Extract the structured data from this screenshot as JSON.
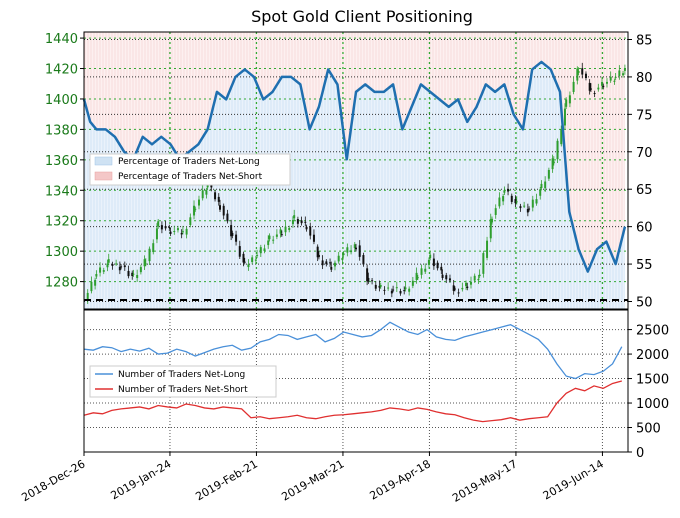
{
  "chart_data": [
    {
      "type": "line",
      "title": "Spot Gold Client Positioning",
      "x_ticks": [
        "2018-Dec-26",
        "2019-Jan-24",
        "2019-Feb-21",
        "2019-Mar-21",
        "2019-Apr-18",
        "2019-May-17",
        "2019-Jun-14"
      ],
      "y_left_ticks": [
        1280,
        1300,
        1320,
        1340,
        1360,
        1380,
        1400,
        1420,
        1440
      ],
      "y_left_range": [
        1262,
        1444
      ],
      "y_right_ticks": [
        50,
        55,
        60,
        65,
        70,
        75,
        80,
        85
      ],
      "y_right_range": [
        49,
        86
      ],
      "legend_position": "upper-left",
      "series": [
        {
          "name": "Percentage of Traders Net-Long",
          "color": "#1f6fb0",
          "axis": "right",
          "x": [
            0,
            2,
            4,
            7,
            10,
            13,
            16,
            19,
            22,
            25,
            28,
            31,
            34,
            37,
            40,
            43,
            46,
            49,
            52,
            55,
            58,
            61,
            64,
            67,
            70,
            73,
            76,
            79,
            82,
            85,
            88,
            91,
            94,
            97,
            100,
            103,
            106,
            109,
            112,
            115,
            118,
            121,
            124,
            127,
            130,
            133,
            136,
            139,
            142,
            145,
            148,
            151,
            154,
            157,
            160,
            163,
            166,
            169,
            172,
            175
          ],
          "values": [
            77,
            74,
            73,
            73,
            72,
            70,
            69,
            72,
            71,
            72,
            71,
            69,
            70,
            71,
            73,
            78,
            77,
            80,
            81,
            80,
            77,
            78,
            80,
            80,
            79,
            73,
            76,
            81,
            79,
            69,
            78,
            79,
            78,
            78,
            79,
            73,
            76,
            79,
            78,
            77,
            76,
            77,
            74,
            76,
            79,
            78,
            79,
            75,
            73,
            81,
            82,
            81,
            78,
            62,
            57,
            54,
            57,
            58,
            55,
            60
          ]
        },
        {
          "name": "Percentage of Traders Net-Short",
          "color": "#f4a0a0",
          "axis": "right",
          "x": [
            0,
            2,
            4,
            7,
            10,
            13,
            16,
            19,
            22,
            25,
            28,
            31,
            34,
            37,
            40,
            43,
            46,
            49,
            52,
            55,
            58,
            61,
            64,
            67,
            70,
            73,
            76,
            79,
            82,
            85,
            88,
            91,
            94,
            97,
            100,
            103,
            106,
            109,
            112,
            115,
            118,
            121,
            124,
            127,
            130,
            133,
            136,
            139,
            142,
            145,
            148,
            151,
            154,
            157,
            160,
            163,
            166,
            169,
            172,
            175
          ],
          "values": [
            23,
            26,
            27,
            27,
            28,
            30,
            31,
            28,
            29,
            28,
            29,
            31,
            30,
            29,
            27,
            22,
            23,
            20,
            19,
            20,
            23,
            22,
            20,
            20,
            21,
            27,
            24,
            19,
            21,
            31,
            22,
            21,
            22,
            22,
            21,
            27,
            24,
            21,
            22,
            23,
            24,
            23,
            26,
            24,
            21,
            22,
            21,
            25,
            27,
            19,
            18,
            19,
            22,
            38,
            43,
            46,
            43,
            42,
            45,
            40
          ]
        },
        {
          "name": "Spot Gold Price",
          "color": "#2e8b2e",
          "axis": "left",
          "style": "candlestick",
          "x": [
            0,
            4,
            8,
            12,
            16,
            20,
            24,
            28,
            32,
            36,
            40,
            44,
            48,
            52,
            56,
            60,
            64,
            68,
            72,
            76,
            80,
            84,
            88,
            92,
            96,
            100,
            104,
            108,
            112,
            116,
            120,
            124,
            128,
            132,
            136,
            140,
            144,
            148,
            152,
            156,
            160,
            164,
            168,
            172,
            175
          ],
          "values": [
            1268,
            1285,
            1292,
            1290,
            1283,
            1293,
            1318,
            1313,
            1312,
            1330,
            1343,
            1330,
            1310,
            1290,
            1298,
            1308,
            1312,
            1322,
            1316,
            1295,
            1290,
            1298,
            1304,
            1280,
            1275,
            1275,
            1274,
            1284,
            1296,
            1284,
            1274,
            1278,
            1284,
            1324,
            1340,
            1330,
            1328,
            1342,
            1360,
            1398,
            1420,
            1405,
            1410,
            1414,
            1419
          ]
        }
      ]
    },
    {
      "type": "line",
      "y_ticks": [
        0,
        500,
        1000,
        1500,
        2000,
        2500
      ],
      "y_range": [
        0,
        2900
      ],
      "legend_position": "middle-left",
      "series": [
        {
          "name": "Number of Traders Net-Long",
          "color": "#4a90d9",
          "x": [
            0,
            3,
            6,
            9,
            12,
            15,
            18,
            21,
            24,
            27,
            30,
            33,
            36,
            39,
            42,
            45,
            48,
            51,
            54,
            57,
            60,
            63,
            66,
            69,
            72,
            75,
            78,
            81,
            84,
            87,
            90,
            93,
            96,
            99,
            102,
            105,
            108,
            111,
            114,
            117,
            120,
            123,
            126,
            129,
            132,
            135,
            138,
            141,
            144,
            147,
            150,
            153,
            156,
            159,
            162,
            165,
            168,
            171,
            174
          ],
          "values": [
            2100,
            2080,
            2150,
            2130,
            2050,
            2100,
            2060,
            2120,
            2000,
            2020,
            2100,
            2050,
            1960,
            2030,
            2100,
            2150,
            2180,
            2080,
            2120,
            2250,
            2300,
            2400,
            2380,
            2300,
            2350,
            2400,
            2250,
            2320,
            2450,
            2400,
            2350,
            2380,
            2500,
            2650,
            2550,
            2450,
            2400,
            2500,
            2350,
            2300,
            2280,
            2350,
            2400,
            2450,
            2500,
            2550,
            2600,
            2500,
            2400,
            2300,
            2100,
            1800,
            1550,
            1500,
            1600,
            1580,
            1650,
            1800,
            2150
          ]
        },
        {
          "name": "Number of Traders Net-Short",
          "color": "#e03030",
          "x": [
            0,
            3,
            6,
            9,
            12,
            15,
            18,
            21,
            24,
            27,
            30,
            33,
            36,
            39,
            42,
            45,
            48,
            51,
            54,
            57,
            60,
            63,
            66,
            69,
            72,
            75,
            78,
            81,
            84,
            87,
            90,
            93,
            96,
            99,
            102,
            105,
            108,
            111,
            114,
            117,
            120,
            123,
            126,
            129,
            132,
            135,
            138,
            141,
            144,
            147,
            150,
            153,
            156,
            159,
            162,
            165,
            168,
            171,
            174
          ],
          "values": [
            750,
            800,
            780,
            850,
            880,
            900,
            920,
            880,
            950,
            920,
            900,
            980,
            950,
            900,
            880,
            920,
            900,
            880,
            700,
            720,
            680,
            700,
            720,
            750,
            700,
            680,
            720,
            750,
            760,
            780,
            800,
            820,
            850,
            900,
            880,
            850,
            900,
            870,
            820,
            780,
            760,
            700,
            650,
            620,
            640,
            660,
            700,
            650,
            680,
            700,
            720,
            1000,
            1200,
            1300,
            1250,
            1350,
            1300,
            1400,
            1450
          ]
        }
      ]
    }
  ]
}
